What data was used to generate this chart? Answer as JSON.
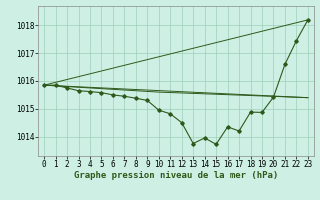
{
  "background_color": "#cef0e4",
  "grid_color": "#9ecfb8",
  "line_color": "#2d5a1b",
  "marker_color": "#2d5a1b",
  "xlabel": "Graphe pression niveau de la mer (hPa)",
  "xlabel_fontsize": 6.5,
  "tick_fontsize": 5.5,
  "ylim": [
    1013.3,
    1018.7
  ],
  "xlim": [
    -0.5,
    23.5
  ],
  "yticks": [
    1014,
    1015,
    1016,
    1017,
    1018
  ],
  "xticks": [
    0,
    1,
    2,
    3,
    4,
    5,
    6,
    7,
    8,
    9,
    10,
    11,
    12,
    13,
    14,
    15,
    16,
    17,
    18,
    19,
    20,
    21,
    22,
    23
  ],
  "series": {
    "line_flat": {
      "x": [
        0,
        23
      ],
      "y": [
        1015.85,
        1015.4
      ]
    },
    "line_rising": {
      "x": [
        0,
        23
      ],
      "y": [
        1015.85,
        1018.2
      ]
    },
    "line_mid": {
      "x": [
        0,
        10,
        23
      ],
      "y": [
        1015.85,
        1015.6,
        1015.4
      ]
    },
    "line_main": {
      "x": [
        0,
        1,
        2,
        3,
        4,
        5,
        6,
        7,
        8,
        9,
        10,
        11,
        12,
        13,
        14,
        15,
        16,
        17,
        18,
        19,
        20,
        21,
        22,
        23
      ],
      "y": [
        1015.85,
        1015.85,
        1015.75,
        1015.65,
        1015.62,
        1015.58,
        1015.5,
        1015.45,
        1015.38,
        1015.3,
        1014.95,
        1014.82,
        1014.5,
        1013.75,
        1013.95,
        1013.72,
        1014.35,
        1014.2,
        1014.88,
        1014.87,
        1015.42,
        1016.6,
        1017.45,
        1018.2
      ]
    }
  }
}
